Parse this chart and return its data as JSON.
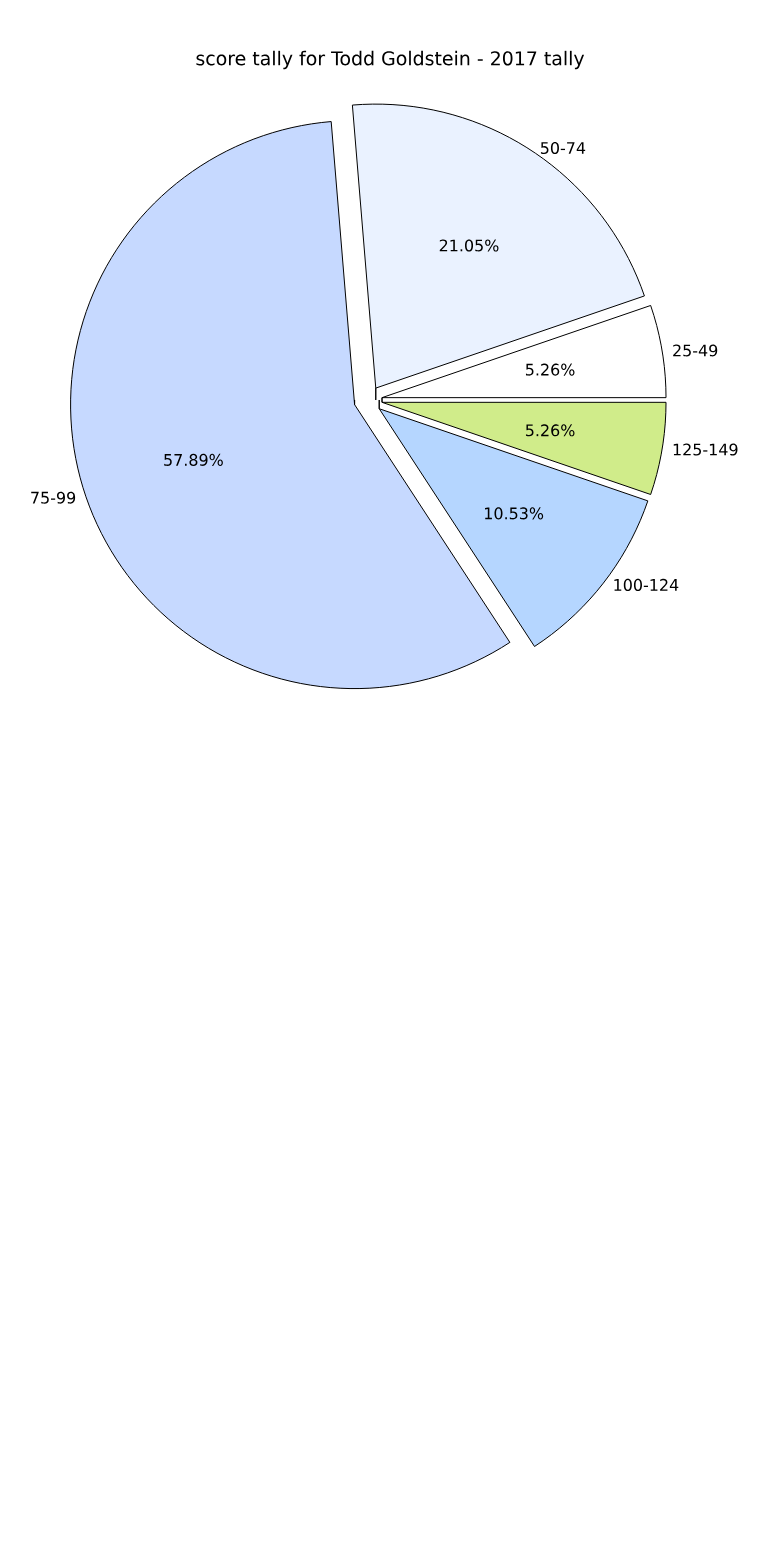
{
  "chart_data": {
    "type": "pie",
    "title": "score tally for Todd Goldstein - 2017 tally",
    "categories": [
      "25-49",
      "50-74",
      "75-99",
      "100-124",
      "125-149"
    ],
    "values": [
      5.26,
      21.05,
      57.89,
      10.53,
      5.26
    ],
    "value_labels": [
      "5.26%",
      "21.05%",
      "57.89%",
      "10.53%",
      "5.26%"
    ],
    "colors": [
      "#ffffff",
      "#eaf2ff",
      "#c6d9ff",
      "#b5d6ff",
      "#d0ec8a"
    ]
  }
}
